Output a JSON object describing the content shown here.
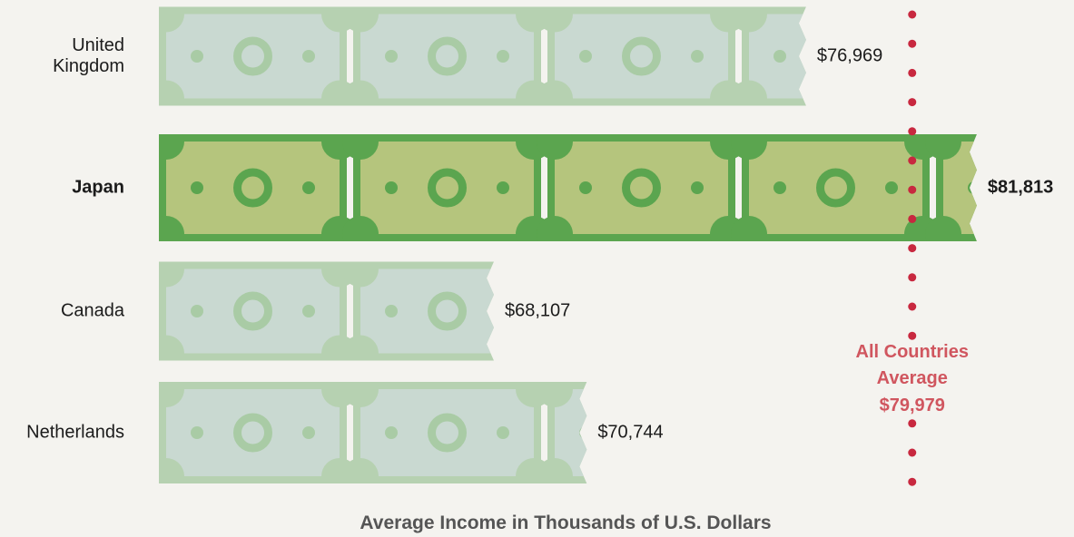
{
  "chart_data": {
    "type": "bar",
    "orientation": "horizontal",
    "x_label": "Average Income in Thousands of U.S. Dollars",
    "categories": [
      "United Kingdom",
      "Japan",
      "Canada",
      "Netherlands"
    ],
    "values": [
      76969,
      81813,
      68107,
      70744
    ],
    "value_labels": [
      "$76,969",
      "$81,813",
      "$68,107",
      "$70,744"
    ],
    "xlim": [
      58600,
      83000
    ],
    "highlight_index": 1,
    "colors": {
      "bill": "#b6d1b1",
      "bill_inner": "#c9d9d1",
      "bill_mark": "#a9cba5",
      "highlight_bill": "#5ba54f",
      "highlight_inner": "#b5c57d",
      "highlight_mark": "#5ba54f",
      "reference": "#c8283f",
      "reference_text": "#d0565f"
    },
    "reference_line": {
      "label": "All Countries Average",
      "value": 79979,
      "value_label": "$79,979"
    }
  }
}
